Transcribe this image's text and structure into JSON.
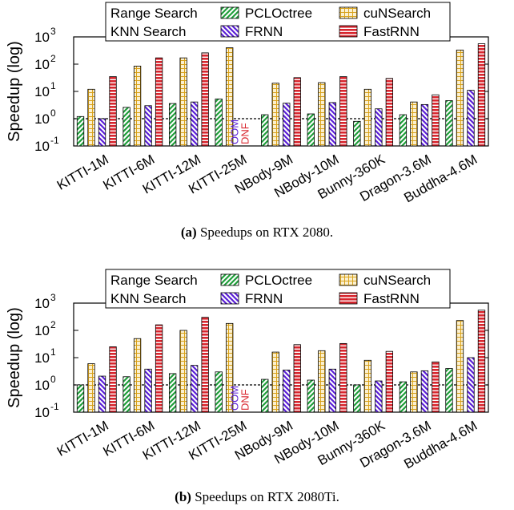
{
  "chart_data": [
    {
      "type": "bar",
      "caption_tag": "(a)",
      "caption_text": "Speedups on RTX 2080.",
      "ylabel": "Speedup (log)",
      "yscale": "log",
      "ylim": [
        0.1,
        1000
      ],
      "reference_line": 1,
      "legend_groups": [
        "Range Search",
        "KNN Search"
      ],
      "categories": [
        "KITTI-1M",
        "KITTI-6M",
        "KITTI-12M",
        "KITTI-25M",
        "NBody-9M",
        "NBody-10M",
        "Bunny-360K",
        "Dragon-3.6M",
        "Buddha-4.6M"
      ],
      "series": [
        {
          "name": "PCLOctree",
          "values": [
            1.2,
            2.6,
            3.6,
            5.3,
            1.4,
            1.5,
            0.8,
            1.4,
            4.6
          ]
        },
        {
          "name": "cuNSearch",
          "values": [
            12,
            85,
            170,
            400,
            20,
            21,
            12,
            4.1,
            330
          ]
        },
        {
          "name": "FRNN",
          "values": [
            1.0,
            3.0,
            4.1,
            null,
            3.7,
            3.9,
            2.3,
            3.3,
            11
          ]
        },
        {
          "name": "FastRNN",
          "values": [
            35,
            170,
            260,
            null,
            32,
            35,
            30,
            7.5,
            560
          ]
        }
      ],
      "annotations": [
        {
          "text": "OOM",
          "category": "KITTI-25M",
          "color": "#5a1fd6"
        },
        {
          "text": "DNF",
          "category": "KITTI-25M",
          "color": "#d8262e"
        }
      ]
    },
    {
      "type": "bar",
      "caption_tag": "(b)",
      "caption_text": "Speedups on RTX 2080Ti.",
      "ylabel": "Speedup (log)",
      "yscale": "log",
      "ylim": [
        0.1,
        1000
      ],
      "reference_line": 1,
      "legend_groups": [
        "Range Search",
        "KNN Search"
      ],
      "categories": [
        "KITTI-1M",
        "KITTI-6M",
        "KITTI-12M",
        "KITTI-25M",
        "NBody-9M",
        "NBody-10M",
        "Bunny-360K",
        "Dragon-3.6M",
        "Buddha-4.6M"
      ],
      "series": [
        {
          "name": "PCLOctree",
          "values": [
            1.0,
            2.0,
            2.6,
            3.0,
            1.6,
            1.5,
            1.0,
            1.3,
            4.0
          ]
        },
        {
          "name": "cuNSearch",
          "values": [
            6,
            50,
            100,
            180,
            16,
            18,
            8,
            3.0,
            230
          ]
        },
        {
          "name": "FRNN",
          "values": [
            2.1,
            3.8,
            5.2,
            null,
            3.5,
            3.8,
            1.4,
            3.3,
            10
          ]
        },
        {
          "name": "FastRNN",
          "values": [
            25,
            160,
            300,
            null,
            30,
            33,
            17,
            7.0,
            550
          ]
        }
      ],
      "annotations": [
        {
          "text": "OOM",
          "category": "KITTI-25M",
          "color": "#5a1fd6"
        },
        {
          "text": "DNF",
          "category": "KITTI-25M",
          "color": "#d8262e"
        }
      ]
    }
  ],
  "series_style": {
    "PCLOctree": {
      "fill": "#1f9e3a",
      "pattern": "diag-right"
    },
    "cuNSearch": {
      "fill": "#d9a21b",
      "pattern": "grid"
    },
    "FRNN": {
      "fill": "#5a1fd6",
      "pattern": "diag-left"
    },
    "FastRNN": {
      "fill": "#d8262e",
      "pattern": "hlines"
    }
  },
  "ytick_labels": [
    "10",
    "10",
    "10",
    "10",
    "10"
  ],
  "ytick_exponents": [
    "-1",
    "0",
    "1",
    "2",
    "3"
  ]
}
